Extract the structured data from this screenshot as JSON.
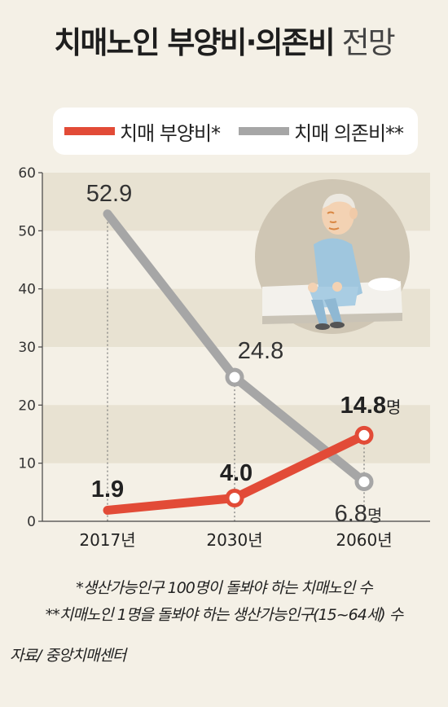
{
  "title": "치매노인 부양비·의존비",
  "title_suffix": "전망",
  "legend": {
    "series1": "치매 부양비*",
    "series2": "치매 의존비**"
  },
  "footnotes": [
    "*생산가능인구 100명이 돌봐야 하는 치매노인 수",
    "**치매노인 1명을 돌봐야 하는 생산가능인구(15~64세) 수"
  ],
  "source": "자료/ 중앙치매센터",
  "colors": {
    "series1": "#e24b37",
    "series2": "#a6a6a6",
    "background": "#f4f0e6",
    "band": "#e8e2d2"
  },
  "chart_data": {
    "type": "line",
    "categories": [
      "2017년",
      "2030년",
      "2060년"
    ],
    "ylim": [
      0,
      60
    ],
    "yticks": [
      0,
      10,
      20,
      30,
      40,
      50,
      60
    ],
    "grid": "horizontal bands",
    "legend_position": "top",
    "series": [
      {
        "name": "치매 부양비*",
        "values": [
          1.9,
          4.0,
          14.8
        ],
        "labels": [
          "1.9",
          "4.0",
          "14.8"
        ],
        "unit_last": "명"
      },
      {
        "name": "치매 의존비**",
        "values": [
          52.9,
          24.8,
          6.8
        ],
        "labels": [
          "52.9",
          "24.8",
          "6.8"
        ],
        "unit_last": "명"
      }
    ]
  }
}
